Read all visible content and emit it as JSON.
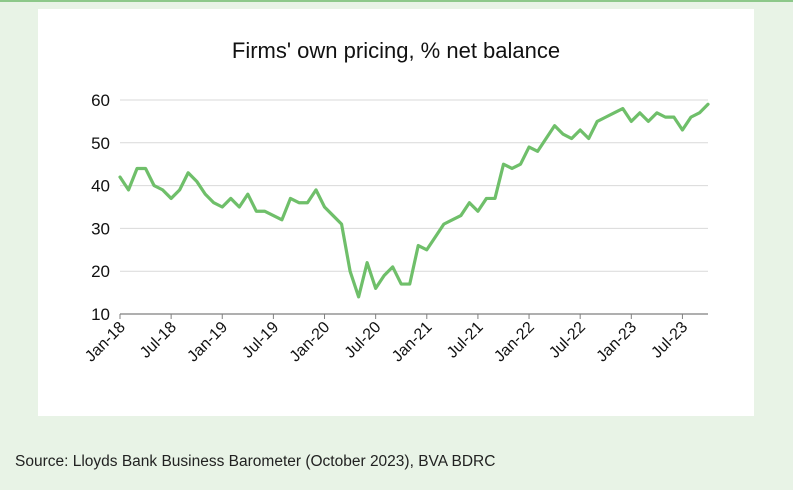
{
  "figure": {
    "source": "Source: Lloyds Bank Business Barometer (October 2023), BVA BDRC"
  },
  "colors": {
    "line": "#6fbf6a",
    "grid": "#d9d9d9",
    "axis": "#7f7f7f",
    "text": "#111111"
  },
  "chart_data": {
    "type": "line",
    "title": "Firms' own pricing, % net balance",
    "xlabel": "",
    "ylabel": "",
    "ylim": [
      10,
      60
    ],
    "yticks": [
      10,
      20,
      30,
      40,
      50,
      60
    ],
    "grid": true,
    "legend": "none",
    "x_tick_labels": [
      "Jan-18",
      "Jul-18",
      "Jan-19",
      "Jul-19",
      "Jan-20",
      "Jul-20",
      "Jan-21",
      "Jul-21",
      "Jan-22",
      "Jul-22",
      "Jan-23",
      "Jul-23"
    ],
    "x": [
      "Jan-18",
      "Feb-18",
      "Mar-18",
      "Apr-18",
      "May-18",
      "Jun-18",
      "Jul-18",
      "Aug-18",
      "Sep-18",
      "Oct-18",
      "Nov-18",
      "Dec-18",
      "Jan-19",
      "Feb-19",
      "Mar-19",
      "Apr-19",
      "May-19",
      "Jun-19",
      "Jul-19",
      "Aug-19",
      "Sep-19",
      "Oct-19",
      "Nov-19",
      "Dec-19",
      "Jan-20",
      "Feb-20",
      "Mar-20",
      "Apr-20",
      "May-20",
      "Jun-20",
      "Jul-20",
      "Aug-20",
      "Sep-20",
      "Oct-20",
      "Nov-20",
      "Dec-20",
      "Jan-21",
      "Feb-21",
      "Mar-21",
      "Apr-21",
      "May-21",
      "Jun-21",
      "Jul-21",
      "Aug-21",
      "Sep-21",
      "Oct-21",
      "Nov-21",
      "Dec-21",
      "Jan-22",
      "Feb-22",
      "Mar-22",
      "Apr-22",
      "May-22",
      "Jun-22",
      "Jul-22",
      "Aug-22",
      "Sep-22",
      "Oct-22",
      "Nov-22",
      "Dec-22",
      "Jan-23",
      "Feb-23",
      "Mar-23",
      "Apr-23",
      "May-23",
      "Jun-23",
      "Jul-23",
      "Aug-23",
      "Sep-23",
      "Oct-23"
    ],
    "series": [
      {
        "values": [
          42,
          39,
          44,
          44,
          40,
          39,
          37,
          39,
          43,
          41,
          38,
          36,
          35,
          37,
          35,
          38,
          34,
          34,
          33,
          32,
          37,
          36,
          36,
          39,
          35,
          33,
          31,
          20,
          14,
          22,
          16,
          19,
          21,
          17,
          17,
          26,
          25,
          28,
          31,
          32,
          33,
          36,
          34,
          37,
          37,
          45,
          44,
          45,
          49,
          48,
          51,
          54,
          52,
          51,
          53,
          51,
          55,
          56,
          57,
          58,
          55,
          57,
          55,
          57,
          56,
          56,
          53,
          56,
          57,
          59
        ]
      }
    ]
  }
}
